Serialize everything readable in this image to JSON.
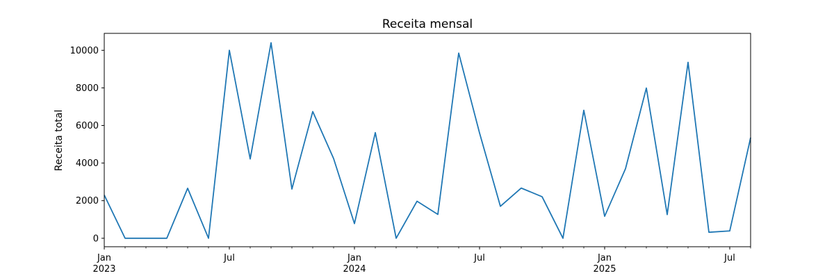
{
  "chart_data": {
    "type": "line",
    "title": "Receita mensal",
    "xlabel": "",
    "ylabel": "Receita total",
    "x": [
      "2023-01",
      "2023-02",
      "2023-03",
      "2023-04",
      "2023-05",
      "2023-06",
      "2023-07",
      "2023-08",
      "2023-09",
      "2023-10",
      "2023-11",
      "2023-12",
      "2024-01",
      "2024-02",
      "2024-03",
      "2024-04",
      "2024-05",
      "2024-06",
      "2024-07",
      "2024-08",
      "2024-09",
      "2024-10",
      "2024-11",
      "2024-12",
      "2025-01",
      "2025-02",
      "2025-03",
      "2025-04",
      "2025-05",
      "2025-06",
      "2025-07",
      "2025-08"
    ],
    "series": [
      {
        "name": "",
        "color": "#1f77b4",
        "values": [
          2300,
          0,
          0,
          0,
          2660,
          0,
          10000,
          4220,
          10400,
          2620,
          6740,
          4240,
          780,
          5620,
          0,
          1970,
          1270,
          9850,
          5600,
          1700,
          2670,
          2210,
          0,
          6810,
          1170,
          3700,
          7990,
          1260,
          9360,
          320,
          390,
          5350
        ]
      }
    ],
    "xlim": [
      "2023-01",
      "2025-08"
    ],
    "ylim": [
      -450,
      10900
    ],
    "yticks": [
      0,
      2000,
      4000,
      6000,
      8000,
      10000
    ],
    "ytick_labels": [
      "0",
      "2000",
      "4000",
      "6000",
      "8000",
      "10000"
    ],
    "xticks_major": [
      {
        "x": "2023-01",
        "label": "Jan",
        "sublabel": "2023"
      },
      {
        "x": "2023-07",
        "label": "Jul",
        "sublabel": ""
      },
      {
        "x": "2024-01",
        "label": "Jan",
        "sublabel": "2024"
      },
      {
        "x": "2024-07",
        "label": "Jul",
        "sublabel": ""
      },
      {
        "x": "2025-01",
        "label": "Jan",
        "sublabel": "2025"
      },
      {
        "x": "2025-07",
        "label": "Jul",
        "sublabel": ""
      }
    ],
    "grid": false,
    "legend": "none"
  }
}
